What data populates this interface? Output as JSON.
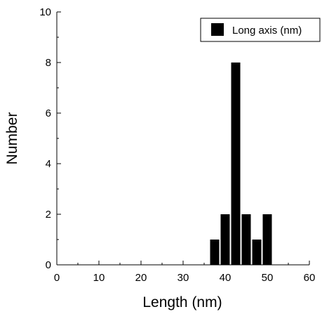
{
  "chart_data": {
    "type": "bar",
    "title": "",
    "xlabel": "Length (nm)",
    "ylabel": "Number",
    "xlim": [
      0,
      60
    ],
    "ylim": [
      0,
      10
    ],
    "xticks": [
      "0",
      "10",
      "20",
      "30",
      "40",
      "50",
      "60"
    ],
    "yticks": [
      "0",
      "2",
      "4",
      "6",
      "8",
      "10"
    ],
    "grid": false,
    "legend_position": "top-right",
    "bar_color": "#000000",
    "series": [
      {
        "name": "Long axis (nm)",
        "bins": [
          {
            "center": 37.5,
            "value": 1
          },
          {
            "center": 40,
            "value": 2
          },
          {
            "center": 42.5,
            "value": 8
          },
          {
            "center": 45,
            "value": 2
          },
          {
            "center": 47.5,
            "value": 1
          },
          {
            "center": 50,
            "value": 2
          }
        ]
      }
    ]
  }
}
